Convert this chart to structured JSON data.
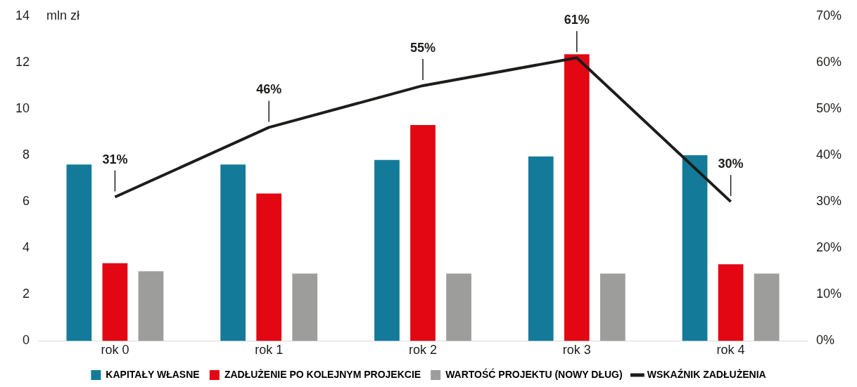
{
  "chart_data": {
    "type": "bar",
    "ylabel": "mln zł",
    "categories": [
      "rok 0",
      "rok 1",
      "rok 2",
      "rok 3",
      "rok 4"
    ],
    "series": [
      {
        "name": "KAPITAŁY WŁASNE",
        "color": "#137b99",
        "values": [
          7.6,
          7.6,
          7.8,
          7.95,
          8.0
        ]
      },
      {
        "name": "ZADŁUŻENIE PO KOLEJNYM PROJEKCIE",
        "color": "#e30613",
        "values": [
          3.35,
          6.35,
          9.3,
          12.35,
          3.3
        ]
      },
      {
        "name": "WARTOŚĆ PROJEKTU (NOWY DŁUG)",
        "color": "#9d9d9c",
        "values": [
          3.0,
          2.9,
          2.9,
          2.9,
          2.9
        ]
      },
      {
        "name": "WSKAŹNIK ZADŁUŻENIA",
        "type": "line",
        "axis": "y2",
        "color": "#1d1d1b",
        "values": [
          31,
          46,
          55,
          61,
          30
        ],
        "value_labels": [
          "31%",
          "46%",
          "55%",
          "61%",
          "30%"
        ]
      }
    ],
    "ylim": [
      0,
      14
    ],
    "yticks": [
      0,
      2,
      4,
      6,
      8,
      10,
      12,
      14
    ],
    "y2lim": [
      0,
      70
    ],
    "y2ticks": [
      {
        "value": 0,
        "label": "0%"
      },
      {
        "value": 10,
        "label": "10%"
      },
      {
        "value": 20,
        "label": "20%"
      },
      {
        "value": 30,
        "label": "30%"
      },
      {
        "value": 40,
        "label": "40%"
      },
      {
        "value": 50,
        "label": "50%"
      },
      {
        "value": 60,
        "label": "60%"
      },
      {
        "value": 70,
        "label": "70%"
      }
    ],
    "grid": false,
    "legend": "bottom",
    "marker": "none"
  }
}
